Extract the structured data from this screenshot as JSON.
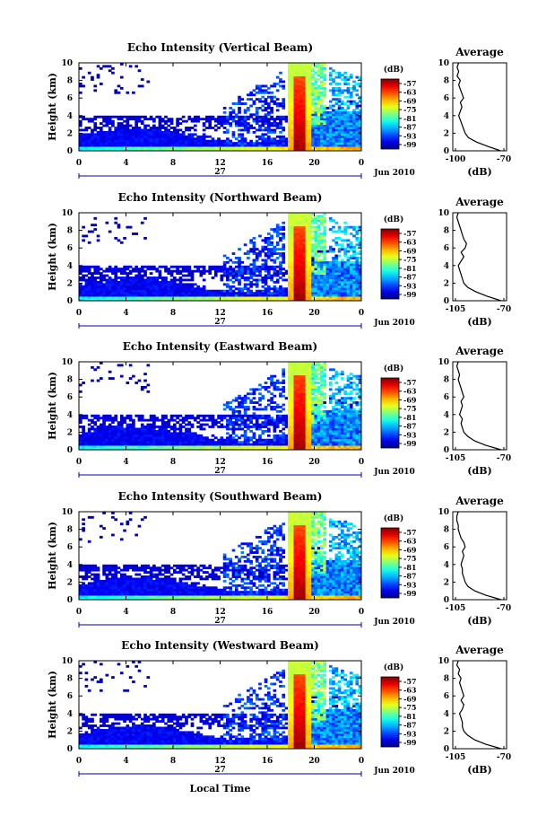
{
  "chart_data": [
    {
      "type": "heatmap",
      "title": "Echo Intensity (Vertical Beam)",
      "ylabel": "Height (km)",
      "xticks": [
        "0",
        "4",
        "8",
        "12",
        "16",
        "20",
        "0"
      ],
      "date_label": "27",
      "month_label": "Jun 2010",
      "ylim": [
        0,
        10
      ],
      "yticks": [
        "0",
        "2",
        "4",
        "6",
        "8",
        "10"
      ],
      "colorbar": {
        "unit": "(dB)",
        "ticks": [
          "-57",
          "-63",
          "-69",
          "-75",
          "-81",
          "-87",
          "-93",
          "-99"
        ]
      },
      "profile": {
        "title": "Average",
        "xlabel": "(dB)",
        "xticks": [
          "-100",
          "-70"
        ],
        "xlim": [
          -100,
          -70
        ],
        "y": [
          0,
          0.5,
          1,
          1.5,
          2,
          2.5,
          3,
          3.5,
          4,
          4.5,
          5,
          5.5,
          6,
          6.5,
          7,
          7.5,
          8,
          8.5,
          9,
          9.5,
          10
        ],
        "values": [
          -72,
          -80,
          -87,
          -92,
          -94,
          -95,
          -96,
          -97,
          -98,
          -97,
          -96,
          -97,
          -95,
          -96,
          -97,
          -98,
          -97,
          -99,
          -98,
          -99,
          -98
        ]
      }
    },
    {
      "type": "heatmap",
      "title": "Echo Intensity (Northward Beam)",
      "ylabel": "Height (km)",
      "xticks": [
        "0",
        "4",
        "8",
        "12",
        "16",
        "20",
        "0"
      ],
      "date_label": "27",
      "month_label": "Jun 2010",
      "ylim": [
        0,
        10
      ],
      "yticks": [
        "0",
        "2",
        "4",
        "6",
        "8",
        "10"
      ],
      "colorbar": {
        "unit": "(dB)",
        "ticks": [
          "-57",
          "-63",
          "-69",
          "-75",
          "-81",
          "-87",
          "-93",
          "-99"
        ]
      },
      "profile": {
        "title": "Average",
        "xlabel": "(dB)",
        "xticks": [
          "-105",
          "-70"
        ],
        "xlim": [
          -105,
          -70
        ],
        "y": [
          0,
          0.5,
          1,
          1.5,
          2,
          2.5,
          3,
          3.5,
          4,
          4.5,
          5,
          5.5,
          6,
          6.5,
          7,
          7.5,
          8,
          8.5,
          9,
          9.5,
          10
        ],
        "values": [
          -72,
          -82,
          -90,
          -96,
          -99,
          -100,
          -101,
          -102,
          -103,
          -101,
          -99,
          -101,
          -98,
          -97,
          -99,
          -100,
          -101,
          -102,
          -103,
          -104,
          -103
        ]
      }
    },
    {
      "type": "heatmap",
      "title": "Echo Intensity (Eastward Beam)",
      "ylabel": "Height (km)",
      "xticks": [
        "0",
        "4",
        "8",
        "12",
        "16",
        "20",
        "0"
      ],
      "date_label": "27",
      "month_label": "Jun 2010",
      "ylim": [
        0,
        10
      ],
      "yticks": [
        "0",
        "2",
        "4",
        "6",
        "8",
        "10"
      ],
      "colorbar": {
        "unit": "(dB)",
        "ticks": [
          "-57",
          "-63",
          "-69",
          "-75",
          "-81",
          "-87",
          "-93",
          "-99"
        ]
      },
      "profile": {
        "title": "Average",
        "xlabel": "(dB)",
        "xticks": [
          "-105",
          "-70"
        ],
        "xlim": [
          -105,
          -70
        ],
        "y": [
          0,
          0.5,
          1,
          1.5,
          2,
          2.5,
          3,
          3.5,
          4,
          4.5,
          5,
          5.5,
          6,
          6.5,
          7,
          7.5,
          8,
          8.5,
          9,
          9.5,
          10
        ],
        "values": [
          -72,
          -83,
          -91,
          -96,
          -99,
          -100,
          -101,
          -100,
          -102,
          -101,
          -100,
          -101,
          -99,
          -100,
          -101,
          -102,
          -103,
          -102,
          -103,
          -104,
          -103
        ]
      }
    },
    {
      "type": "heatmap",
      "title": "Echo Intensity (Southward Beam)",
      "ylabel": "Height (km)",
      "xticks": [
        "0",
        "4",
        "8",
        "12",
        "16",
        "20",
        "0"
      ],
      "date_label": "27",
      "month_label": "Jun 2010",
      "ylim": [
        0,
        10
      ],
      "yticks": [
        "0",
        "2",
        "4",
        "6",
        "8",
        "10"
      ],
      "colorbar": {
        "unit": "(dB)",
        "ticks": [
          "-57",
          "-63",
          "-69",
          "-75",
          "-81",
          "-87",
          "-93",
          "-99"
        ]
      },
      "profile": {
        "title": "Average",
        "xlabel": "(dB)",
        "xticks": [
          "-105",
          "-70"
        ],
        "xlim": [
          -105,
          -70
        ],
        "y": [
          0,
          0.5,
          1,
          1.5,
          2,
          2.5,
          3,
          3.5,
          4,
          4.5,
          5,
          5.5,
          6,
          6.5,
          7,
          7.5,
          8,
          8.5,
          9,
          9.5,
          10
        ],
        "values": [
          -72,
          -83,
          -91,
          -96,
          -98,
          -99,
          -100,
          -100,
          -101,
          -100,
          -99,
          -100,
          -98,
          -99,
          -101,
          -102,
          -103,
          -103,
          -104,
          -104,
          -103
        ]
      }
    },
    {
      "type": "heatmap",
      "title": "Echo Intensity (Westward Beam)",
      "ylabel": "Height (km)",
      "xlabel": "Local Time",
      "xticks": [
        "0",
        "4",
        "8",
        "12",
        "16",
        "20",
        "0"
      ],
      "date_label": "27",
      "month_label": "Jun 2010",
      "ylim": [
        0,
        10
      ],
      "yticks": [
        "0",
        "2",
        "4",
        "6",
        "8",
        "10"
      ],
      "colorbar": {
        "unit": "(dB)",
        "ticks": [
          "-57",
          "-63",
          "-69",
          "-75",
          "-81",
          "-87",
          "-93",
          "-99"
        ]
      },
      "profile": {
        "title": "Average",
        "xlabel": "(dB)",
        "xticks": [
          "-105",
          "-70"
        ],
        "xlim": [
          -105,
          -70
        ],
        "y": [
          0,
          0.5,
          1,
          1.5,
          2,
          2.5,
          3,
          3.5,
          4,
          4.5,
          5,
          5.5,
          6,
          6.5,
          7,
          7.5,
          8,
          8.5,
          9,
          9.5,
          10
        ],
        "values": [
          -72,
          -83,
          -91,
          -96,
          -99,
          -100,
          -100,
          -101,
          -102,
          -100,
          -99,
          -101,
          -99,
          -100,
          -101,
          -102,
          -101,
          -103,
          -102,
          -104,
          -103
        ]
      }
    }
  ]
}
